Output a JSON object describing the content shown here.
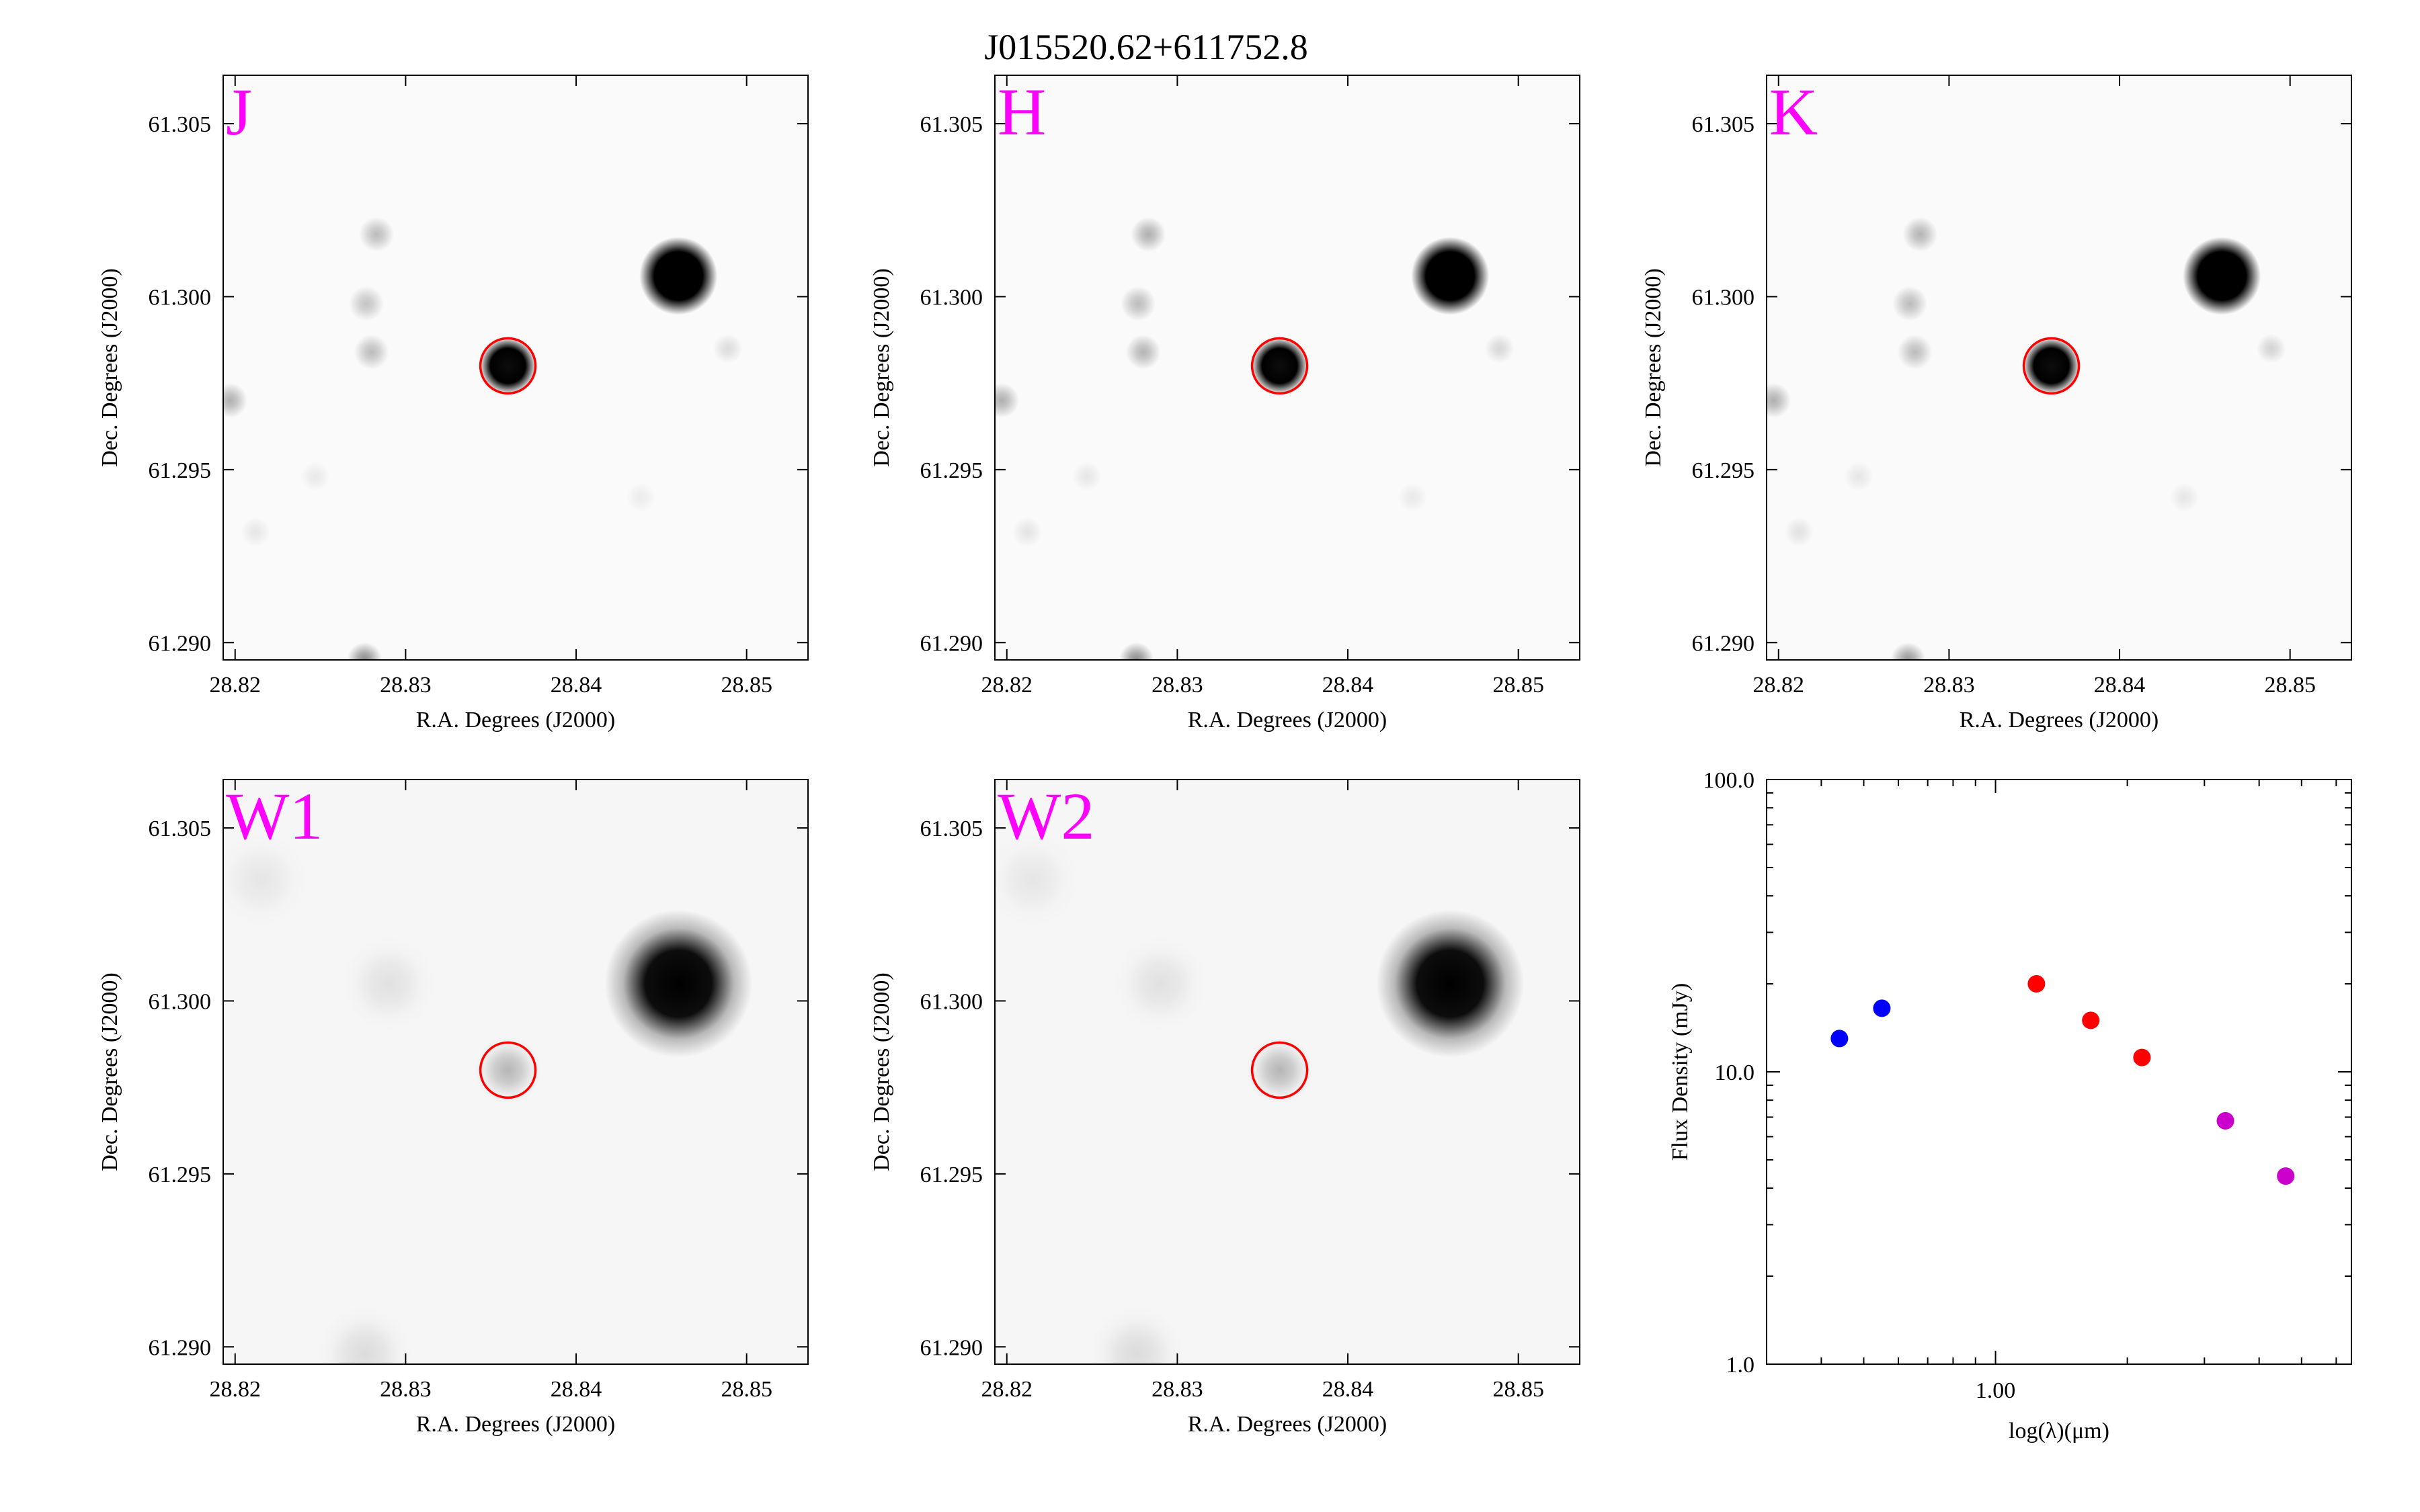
{
  "figure_title": "J015520.62+611752.8",
  "chart_data": [
    {
      "type": "heatmap",
      "band": "J",
      "xlabel": "R.A. Degrees (J2000)",
      "ylabel": "Dec. Degrees (J2000)",
      "xticks": [
        "28.82",
        "28.83",
        "28.84",
        "28.85"
      ],
      "yticks": [
        "61.305",
        "61.300",
        "61.295",
        "61.290"
      ],
      "xlim": [
        28.8193,
        28.8536
      ],
      "ylim": [
        61.2895,
        61.3064
      ],
      "target": {
        "ra": 28.836,
        "dec": 61.298
      },
      "sources": [
        {
          "ra": 28.836,
          "dec": 61.298,
          "level": 0.95
        },
        {
          "ra": 28.846,
          "dec": 61.3006,
          "level": 1.0
        },
        {
          "ra": 28.8283,
          "dec": 61.3018,
          "level": 0.25
        },
        {
          "ra": 28.8277,
          "dec": 61.2998,
          "level": 0.22
        },
        {
          "ra": 28.828,
          "dec": 61.2984,
          "level": 0.25
        },
        {
          "ra": 28.8197,
          "dec": 61.297,
          "level": 0.3
        },
        {
          "ra": 28.8276,
          "dec": 61.2895,
          "level": 0.45
        },
        {
          "ra": 28.8489,
          "dec": 61.2985,
          "level": 0.12
        },
        {
          "ra": 28.8212,
          "dec": 61.2932,
          "level": 0.08
        },
        {
          "ra": 28.8247,
          "dec": 61.2948,
          "level": 0.07
        },
        {
          "ra": 28.8438,
          "dec": 61.2942,
          "level": 0.06
        }
      ]
    },
    {
      "type": "heatmap",
      "band": "H",
      "xlabel": "R.A. Degrees (J2000)",
      "ylabel": "Dec. Degrees (J2000)",
      "xticks": [
        "28.82",
        "28.83",
        "28.84",
        "28.85"
      ],
      "yticks": [
        "61.305",
        "61.300",
        "61.295",
        "61.290"
      ],
      "xlim": [
        28.8193,
        28.8536
      ],
      "ylim": [
        61.2895,
        61.3064
      ],
      "target": {
        "ra": 28.836,
        "dec": 61.298
      },
      "sources": [
        {
          "ra": 28.836,
          "dec": 61.298,
          "level": 0.95
        },
        {
          "ra": 28.846,
          "dec": 61.3006,
          "level": 1.0
        },
        {
          "ra": 28.8283,
          "dec": 61.3018,
          "level": 0.3
        },
        {
          "ra": 28.8277,
          "dec": 61.2998,
          "level": 0.25
        },
        {
          "ra": 28.828,
          "dec": 61.2984,
          "level": 0.28
        },
        {
          "ra": 28.8197,
          "dec": 61.297,
          "level": 0.3
        },
        {
          "ra": 28.8276,
          "dec": 61.2895,
          "level": 0.45
        },
        {
          "ra": 28.8489,
          "dec": 61.2985,
          "level": 0.14
        },
        {
          "ra": 28.8212,
          "dec": 61.2932,
          "level": 0.09
        },
        {
          "ra": 28.8247,
          "dec": 61.2948,
          "level": 0.08
        },
        {
          "ra": 28.8438,
          "dec": 61.2942,
          "level": 0.07
        }
      ]
    },
    {
      "type": "heatmap",
      "band": "K",
      "xlabel": "R.A. Degrees (J2000)",
      "ylabel": "Dec. Degrees (J2000)",
      "xticks": [
        "28.82",
        "28.83",
        "28.84",
        "28.85"
      ],
      "yticks": [
        "61.305",
        "61.300",
        "61.295",
        "61.290"
      ],
      "xlim": [
        28.8193,
        28.8536
      ],
      "ylim": [
        61.2895,
        61.3064
      ],
      "target": {
        "ra": 28.836,
        "dec": 61.298
      },
      "sources": [
        {
          "ra": 28.836,
          "dec": 61.298,
          "level": 0.95
        },
        {
          "ra": 28.846,
          "dec": 61.3006,
          "level": 1.0
        },
        {
          "ra": 28.8283,
          "dec": 61.3018,
          "level": 0.28
        },
        {
          "ra": 28.8277,
          "dec": 61.2998,
          "level": 0.25
        },
        {
          "ra": 28.828,
          "dec": 61.2984,
          "level": 0.25
        },
        {
          "ra": 28.8197,
          "dec": 61.297,
          "level": 0.3
        },
        {
          "ra": 28.8276,
          "dec": 61.2895,
          "level": 0.4
        },
        {
          "ra": 28.8489,
          "dec": 61.2985,
          "level": 0.16
        },
        {
          "ra": 28.8212,
          "dec": 61.2932,
          "level": 0.1
        },
        {
          "ra": 28.8247,
          "dec": 61.2948,
          "level": 0.08
        },
        {
          "ra": 28.8438,
          "dec": 61.2942,
          "level": 0.08
        }
      ]
    },
    {
      "type": "heatmap",
      "band": "W1",
      "xlabel": "R.A. Degrees (J2000)",
      "ylabel": "Dec. Degrees (J2000)",
      "xticks": [
        "28.82",
        "28.83",
        "28.84",
        "28.85"
      ],
      "yticks": [
        "61.305",
        "61.300",
        "61.295",
        "61.290"
      ],
      "xlim": [
        28.8193,
        28.8536
      ],
      "ylim": [
        61.2895,
        61.3064
      ],
      "target": {
        "ra": 28.836,
        "dec": 61.298
      },
      "sources": [
        {
          "ra": 28.836,
          "dec": 61.298,
          "level": 0.12
        },
        {
          "ra": 28.846,
          "dec": 61.3005,
          "level": 1.0
        },
        {
          "ra": 28.829,
          "dec": 61.3005,
          "level": 0.04
        },
        {
          "ra": 28.8276,
          "dec": 61.2898,
          "level": 0.05
        },
        {
          "ra": 28.8215,
          "dec": 61.3035,
          "level": 0.03
        }
      ]
    },
    {
      "type": "heatmap",
      "band": "W2",
      "xlabel": "R.A. Degrees (J2000)",
      "ylabel": "Dec. Degrees (J2000)",
      "xticks": [
        "28.82",
        "28.83",
        "28.84",
        "28.85"
      ],
      "yticks": [
        "61.305",
        "61.300",
        "61.295",
        "61.290"
      ],
      "xlim": [
        28.8193,
        28.8536
      ],
      "ylim": [
        61.2895,
        61.3064
      ],
      "target": {
        "ra": 28.836,
        "dec": 61.298
      },
      "sources": [
        {
          "ra": 28.836,
          "dec": 61.298,
          "level": 0.12
        },
        {
          "ra": 28.846,
          "dec": 61.3005,
          "level": 1.0
        },
        {
          "ra": 28.829,
          "dec": 61.3005,
          "level": 0.04
        },
        {
          "ra": 28.8276,
          "dec": 61.2898,
          "level": 0.05
        },
        {
          "ra": 28.8215,
          "dec": 61.3035,
          "level": 0.03
        }
      ]
    },
    {
      "type": "scatter",
      "xlabel": "log(λ)(μm)",
      "ylabel": "Flux Density (mJy)",
      "x_scale": "log",
      "y_scale": "log",
      "xlim": [
        0.3,
        6.5
      ],
      "ylim": [
        1.0,
        100.0
      ],
      "xticks": [
        "1.00"
      ],
      "yticks": [
        "1.0",
        "10.0",
        "100.0"
      ],
      "grid": false,
      "points": [
        {
          "x": 0.44,
          "y": 13.0,
          "color": "#0000ff"
        },
        {
          "x": 0.55,
          "y": 16.5,
          "color": "#0000ff"
        },
        {
          "x": 1.24,
          "y": 20.0,
          "color": "#ff0000"
        },
        {
          "x": 1.65,
          "y": 15.0,
          "color": "#ff0000"
        },
        {
          "x": 2.16,
          "y": 11.2,
          "color": "#ff0000"
        },
        {
          "x": 3.35,
          "y": 6.8,
          "color": "#cc00cc"
        },
        {
          "x": 4.6,
          "y": 4.4,
          "color": "#cc00cc"
        }
      ]
    }
  ],
  "colors": {
    "band_label": "#ff00ff",
    "target_circle": "#ff0000",
    "axis": "#000000"
  }
}
